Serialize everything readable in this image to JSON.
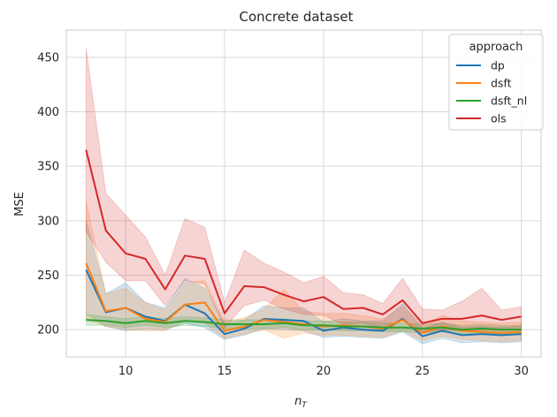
{
  "chart_data": {
    "type": "line",
    "title": "Concrete dataset",
    "xlabel": "n",
    "xlabel_sub": "T",
    "ylabel": "MSE",
    "xlim": [
      7.0,
      31.0
    ],
    "ylim": [
      175,
      475
    ],
    "xticks": [
      10,
      15,
      20,
      25,
      30
    ],
    "yticks": [
      200,
      250,
      300,
      350,
      400,
      450
    ],
    "grid": true,
    "legend_title": "approach",
    "legend_position": "top-right",
    "x": [
      8,
      9,
      10,
      11,
      12,
      13,
      14,
      15,
      16,
      17,
      18,
      19,
      20,
      21,
      22,
      23,
      24,
      25,
      26,
      27,
      28,
      29,
      30
    ],
    "series": [
      {
        "name": "dp",
        "color": "#1f77b4",
        "values": [
          255,
          216,
          220,
          212,
          208,
          223,
          215,
          196,
          201,
          210,
          209,
          208,
          199,
          202,
          200,
          199,
          210,
          194,
          199,
          195,
          196,
          195,
          196
        ],
        "lower": [
          215,
          203,
          199,
          201,
          200,
          206,
          202,
          191,
          195,
          201,
          200,
          199,
          193,
          194,
          193,
          192,
          198,
          187,
          192,
          188,
          189,
          188,
          189
        ],
        "upper": [
          300,
          233,
          243,
          225,
          220,
          247,
          238,
          205,
          209,
          222,
          220,
          220,
          207,
          210,
          208,
          208,
          224,
          201,
          207,
          202,
          203,
          202,
          203
        ]
      },
      {
        "name": "dsft",
        "color": "#ff7f0e",
        "values": [
          261,
          217,
          220,
          210,
          207,
          223,
          225,
          199,
          203,
          209,
          207,
          205,
          203,
          204,
          203,
          201,
          209,
          197,
          203,
          199,
          198,
          197,
          198
        ],
        "lower": [
          210,
          203,
          200,
          199,
          199,
          208,
          206,
          192,
          196,
          200,
          192,
          197,
          195,
          195,
          194,
          193,
          199,
          190,
          194,
          191,
          190,
          189,
          190
        ],
        "upper": [
          318,
          233,
          238,
          225,
          218,
          243,
          245,
          207,
          211,
          219,
          237,
          217,
          215,
          215,
          213,
          210,
          221,
          205,
          213,
          208,
          207,
          206,
          207
        ]
      },
      {
        "name": "dsft_nl",
        "color": "#2ca02c",
        "values": [
          209,
          208,
          206,
          208,
          206,
          208,
          207,
          205,
          205,
          205,
          206,
          204,
          204,
          203,
          203,
          202,
          202,
          201,
          202,
          200,
          201,
          200,
          200
        ],
        "lower": [
          204,
          204,
          202,
          204,
          202,
          204,
          203,
          201,
          201,
          201,
          202,
          200,
          200,
          199,
          199,
          198,
          198,
          197,
          198,
          196,
          197,
          196,
          196
        ],
        "upper": [
          214,
          212,
          210,
          212,
          210,
          212,
          211,
          209,
          209,
          209,
          210,
          208,
          208,
          207,
          207,
          206,
          206,
          205,
          206,
          204,
          205,
          204,
          204
        ]
      },
      {
        "name": "ols",
        "color": "#d62728",
        "values": [
          365,
          291,
          270,
          265,
          237,
          268,
          265,
          215,
          240,
          239,
          232,
          226,
          230,
          219,
          220,
          214,
          227,
          206,
          210,
          210,
          213,
          209,
          212
        ],
        "lower": [
          290,
          262,
          245,
          245,
          222,
          245,
          242,
          202,
          222,
          227,
          219,
          214,
          213,
          205,
          206,
          201,
          210,
          197,
          200,
          199,
          200,
          199,
          200
        ],
        "upper": [
          458,
          325,
          305,
          285,
          250,
          302,
          294,
          225,
          273,
          261,
          253,
          243,
          249,
          234,
          232,
          224,
          247,
          219,
          218,
          226,
          238,
          218,
          221
        ]
      }
    ]
  }
}
